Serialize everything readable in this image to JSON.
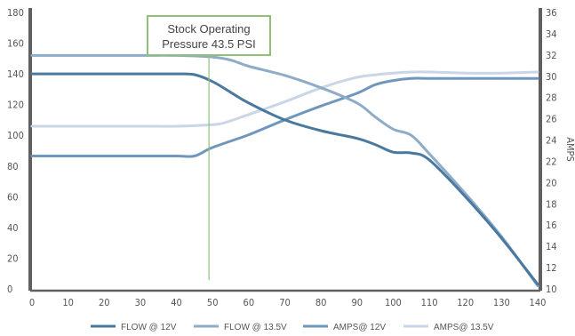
{
  "chart_data": {
    "type": "line",
    "x_ticks": [
      0,
      10,
      20,
      30,
      40,
      50,
      60,
      70,
      80,
      90,
      100,
      110,
      120,
      130,
      140
    ],
    "y_left": {
      "ylim": [
        0,
        180
      ],
      "ticks": [
        0,
        20,
        40,
        60,
        80,
        100,
        120,
        140,
        160,
        180
      ]
    },
    "y_right": {
      "label": "AMPS",
      "ylim": [
        10,
        36
      ],
      "ticks": [
        10,
        12,
        14,
        16,
        18,
        20,
        22,
        24,
        26,
        28,
        30,
        32,
        34,
        36
      ]
    },
    "grid": false,
    "legend_position": "bottom",
    "annotation": {
      "line1": "Stock Operating",
      "line2": "Pressure 43.5 PSI",
      "x": 49
    },
    "series": [
      {
        "name": "FLOW @ 12V",
        "axis": "left",
        "color": "#4a79a0",
        "points": [
          [
            0,
            140
          ],
          [
            10,
            140
          ],
          [
            20,
            140
          ],
          [
            30,
            140
          ],
          [
            40,
            140
          ],
          [
            45,
            139.5
          ],
          [
            50,
            135
          ],
          [
            55,
            128
          ],
          [
            60,
            121
          ],
          [
            70,
            110
          ],
          [
            80,
            103
          ],
          [
            90,
            98
          ],
          [
            95,
            94
          ],
          [
            100,
            89
          ],
          [
            105,
            88.5
          ],
          [
            110,
            84
          ],
          [
            120,
            60
          ],
          [
            130,
            33
          ],
          [
            140,
            3
          ]
        ]
      },
      {
        "name": "FLOW @ 13.5V",
        "axis": "left",
        "color": "#8eabc8",
        "points": [
          [
            0,
            152
          ],
          [
            10,
            152
          ],
          [
            20,
            152
          ],
          [
            30,
            152
          ],
          [
            40,
            152
          ],
          [
            50,
            151
          ],
          [
            55,
            149
          ],
          [
            60,
            145
          ],
          [
            70,
            139
          ],
          [
            80,
            131
          ],
          [
            90,
            121
          ],
          [
            95,
            112
          ],
          [
            100,
            104
          ],
          [
            105,
            100
          ],
          [
            110,
            88
          ],
          [
            120,
            62
          ],
          [
            130,
            34
          ],
          [
            140,
            2
          ]
        ]
      },
      {
        "name": "AMPS@ 12V",
        "axis": "right",
        "color": "#6f96bc",
        "points": [
          [
            0,
            22.5
          ],
          [
            10,
            22.5
          ],
          [
            20,
            22.5
          ],
          [
            30,
            22.5
          ],
          [
            40,
            22.5
          ],
          [
            45,
            22.5
          ],
          [
            50,
            23.3
          ],
          [
            60,
            24.5
          ],
          [
            70,
            25.9
          ],
          [
            80,
            27.2
          ],
          [
            90,
            28.4
          ],
          [
            95,
            29.2
          ],
          [
            100,
            29.6
          ],
          [
            105,
            29.8
          ],
          [
            110,
            29.8
          ],
          [
            120,
            29.8
          ],
          [
            130,
            29.8
          ],
          [
            140,
            29.8
          ]
        ]
      },
      {
        "name": "AMPS@ 13.5V",
        "axis": "right",
        "color": "#c9d6e5",
        "points": [
          [
            0,
            25.3
          ],
          [
            10,
            25.3
          ],
          [
            20,
            25.3
          ],
          [
            30,
            25.3
          ],
          [
            40,
            25.3
          ],
          [
            48,
            25.4
          ],
          [
            53,
            25.6
          ],
          [
            60,
            26.4
          ],
          [
            70,
            27.6
          ],
          [
            80,
            28.9
          ],
          [
            90,
            29.9
          ],
          [
            100,
            30.3
          ],
          [
            105,
            30.4
          ],
          [
            110,
            30.4
          ],
          [
            120,
            30.3
          ],
          [
            130,
            30.3
          ],
          [
            140,
            30.4
          ]
        ]
      }
    ]
  }
}
